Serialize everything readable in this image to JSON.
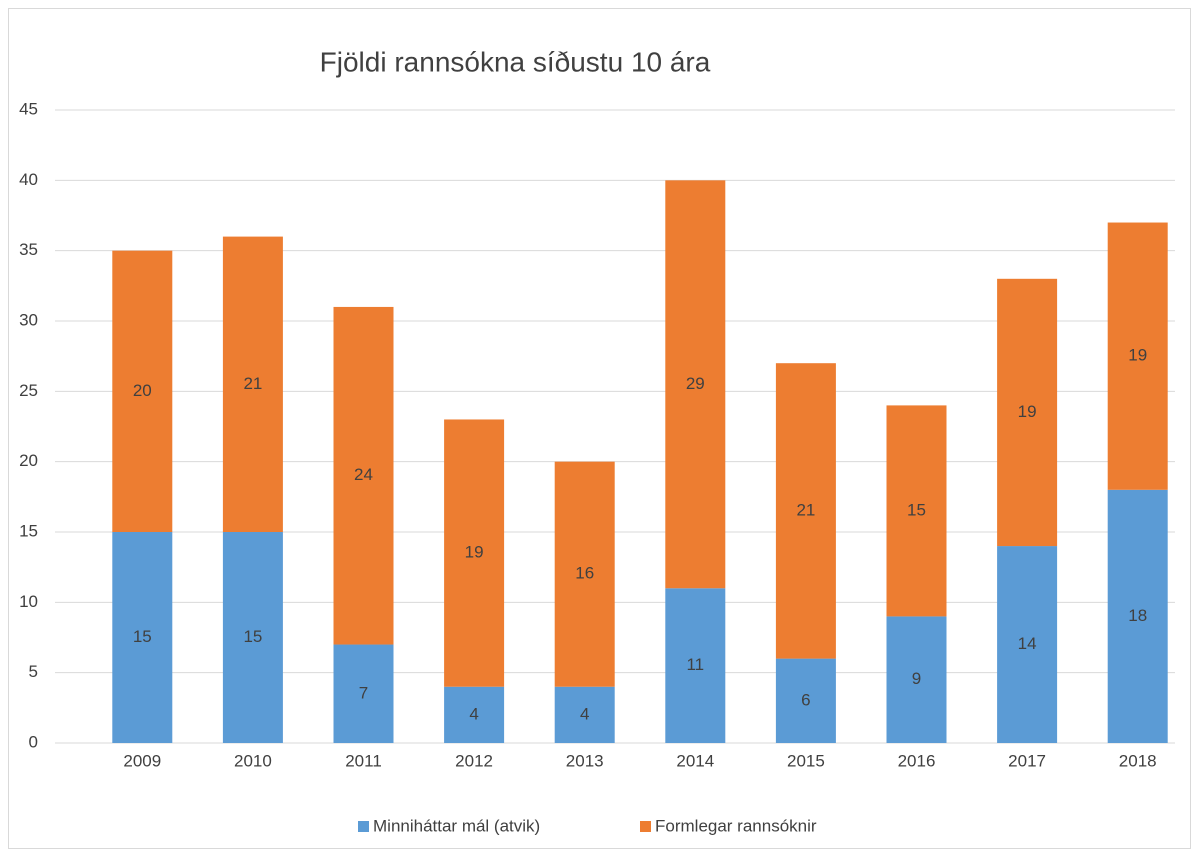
{
  "chart_data": {
    "type": "stacked-bar",
    "title": "Fjöldi rannsókna síðustu 10 ára",
    "categories": [
      "2009",
      "2010",
      "2011",
      "2012",
      "2013",
      "2014",
      "2015",
      "2016",
      "2017",
      "2018"
    ],
    "series": [
      {
        "name": "Minniháttar mál (atvik)",
        "color": "#5b9bd5",
        "values": [
          15,
          15,
          7,
          4,
          4,
          11,
          6,
          9,
          14,
          18
        ]
      },
      {
        "name": "Formlegar rannsóknir",
        "color": "#ed7d31",
        "values": [
          20,
          21,
          24,
          19,
          16,
          29,
          21,
          15,
          19,
          19
        ]
      }
    ],
    "ylim": [
      0,
      45
    ],
    "yticks": [
      0,
      5,
      10,
      15,
      20,
      25,
      30,
      35,
      40,
      45
    ],
    "grid": true,
    "legend": "bottom"
  }
}
